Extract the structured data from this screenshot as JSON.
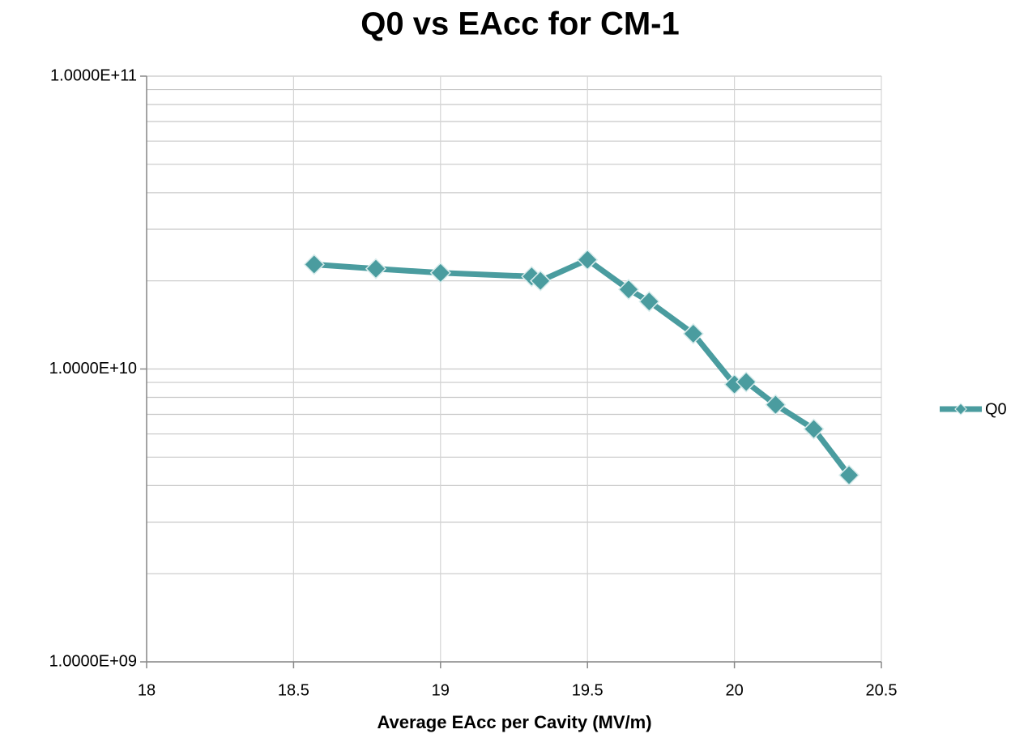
{
  "chart_data": {
    "type": "line",
    "title": "Q0 vs EAcc for CM-1",
    "x_label": "Average EAcc per Cavity (MV/m)",
    "y_scale": "log",
    "grid": true,
    "legend": "right",
    "xlim": [
      18,
      20.5
    ],
    "xticks": [
      18,
      18.5,
      19,
      19.5,
      20,
      20.5
    ],
    "ylim": [
      1000000000,
      100000000000
    ],
    "yticks": [
      {
        "value": 1000000000,
        "label": "1.0000E+09"
      },
      {
        "value": 10000000000,
        "label": "1.0000E+10"
      },
      {
        "value": 100000000000,
        "label": "1.0000E+11"
      }
    ],
    "y_minor_ticks": [
      2000000000,
      3000000000,
      4000000000,
      5000000000,
      6000000000,
      7000000000,
      8000000000,
      9000000000,
      20000000000,
      30000000000,
      40000000000,
      50000000000,
      60000000000,
      70000000000,
      80000000000,
      90000000000
    ],
    "x": [
      18.57,
      18.78,
      19.0,
      19.31,
      19.34,
      19.5,
      19.64,
      19.71,
      19.86,
      20.0,
      20.04,
      20.14,
      20.27,
      20.39
    ],
    "series": [
      {
        "name": "Q0",
        "color": "#4a9c9f",
        "values": [
          22750000000,
          22000000000,
          21300000000,
          20700000000,
          20000000000,
          23600000000,
          18700000000,
          17000000000,
          13200000000,
          8860000000,
          9030000000,
          7550000000,
          6240000000,
          4340000000
        ]
      }
    ]
  }
}
